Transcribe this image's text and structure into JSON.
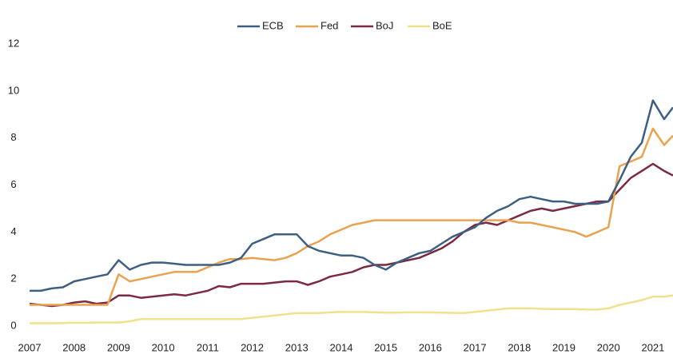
{
  "chart_data": {
    "type": "line",
    "x": [
      2007,
      2007.25,
      2007.5,
      2007.75,
      2008,
      2008.25,
      2008.5,
      2008.75,
      2009,
      2009.25,
      2009.5,
      2009.75,
      2010,
      2010.25,
      2010.5,
      2010.75,
      2011,
      2011.25,
      2011.5,
      2011.75,
      2012,
      2012.25,
      2012.5,
      2012.75,
      2013,
      2013.25,
      2013.5,
      2013.75,
      2014,
      2014.25,
      2014.5,
      2014.75,
      2015,
      2015.25,
      2015.5,
      2015.75,
      2016,
      2016.25,
      2016.5,
      2016.75,
      2017,
      2017.25,
      2017.5,
      2017.75,
      2018,
      2018.25,
      2018.5,
      2018.75,
      2019,
      2019.25,
      2019.5,
      2019.75,
      2020,
      2020.25,
      2020.5,
      2020.75,
      2021,
      2021.25,
      2021.45
    ],
    "series": [
      {
        "name": "ECB",
        "color": "#3d5f82",
        "values": [
          1.5,
          1.5,
          1.6,
          1.65,
          1.9,
          2.0,
          2.1,
          2.2,
          2.8,
          2.4,
          2.6,
          2.7,
          2.7,
          2.65,
          2.6,
          2.6,
          2.6,
          2.6,
          2.7,
          2.9,
          3.5,
          3.7,
          3.9,
          3.9,
          3.9,
          3.4,
          3.2,
          3.1,
          3.0,
          3.0,
          2.9,
          2.6,
          2.4,
          2.7,
          2.9,
          3.1,
          3.2,
          3.5,
          3.8,
          4.0,
          4.2,
          4.6,
          4.9,
          5.1,
          5.4,
          5.5,
          5.4,
          5.3,
          5.3,
          5.2,
          5.2,
          5.2,
          5.3,
          6.2,
          7.2,
          7.8,
          9.6,
          8.8,
          9.3
        ]
      },
      {
        "name": "Fed",
        "color": "#e9a250",
        "values": [
          0.9,
          0.9,
          0.9,
          0.9,
          0.9,
          0.9,
          0.9,
          0.9,
          2.2,
          1.9,
          2.0,
          2.1,
          2.2,
          2.3,
          2.3,
          2.3,
          2.5,
          2.7,
          2.85,
          2.85,
          2.9,
          2.85,
          2.8,
          2.9,
          3.1,
          3.4,
          3.6,
          3.9,
          4.1,
          4.3,
          4.4,
          4.5,
          4.5,
          4.5,
          4.5,
          4.5,
          4.5,
          4.5,
          4.5,
          4.5,
          4.5,
          4.5,
          4.5,
          4.5,
          4.4,
          4.4,
          4.3,
          4.2,
          4.1,
          4.0,
          3.8,
          4.0,
          4.2,
          6.8,
          7.0,
          7.2,
          8.4,
          7.7,
          8.1
        ]
      },
      {
        "name": "BoJ",
        "color": "#7b2a42",
        "values": [
          0.95,
          0.9,
          0.85,
          0.9,
          1.0,
          1.05,
          0.95,
          1.0,
          1.3,
          1.3,
          1.2,
          1.25,
          1.3,
          1.35,
          1.3,
          1.4,
          1.5,
          1.7,
          1.65,
          1.8,
          1.8,
          1.8,
          1.85,
          1.9,
          1.9,
          1.75,
          1.9,
          2.1,
          2.2,
          2.3,
          2.5,
          2.6,
          2.6,
          2.7,
          2.8,
          2.9,
          3.1,
          3.3,
          3.6,
          4.0,
          4.3,
          4.4,
          4.3,
          4.5,
          4.7,
          4.9,
          5.0,
          4.9,
          5.0,
          5.1,
          5.2,
          5.3,
          5.3,
          5.8,
          6.3,
          6.6,
          6.9,
          6.6,
          6.4
        ]
      },
      {
        "name": "BoE",
        "color": "#f0e28c",
        "values": [
          0.12,
          0.12,
          0.12,
          0.13,
          0.14,
          0.14,
          0.15,
          0.15,
          0.15,
          0.2,
          0.3,
          0.3,
          0.3,
          0.3,
          0.3,
          0.3,
          0.3,
          0.3,
          0.3,
          0.3,
          0.35,
          0.4,
          0.45,
          0.5,
          0.55,
          0.55,
          0.55,
          0.58,
          0.6,
          0.6,
          0.6,
          0.58,
          0.57,
          0.57,
          0.58,
          0.58,
          0.58,
          0.57,
          0.56,
          0.55,
          0.6,
          0.65,
          0.7,
          0.75,
          0.75,
          0.75,
          0.73,
          0.72,
          0.72,
          0.72,
          0.7,
          0.7,
          0.75,
          0.9,
          1.0,
          1.1,
          1.25,
          1.25,
          1.3
        ]
      }
    ],
    "xlim": [
      2007,
      2021.45
    ],
    "xticks": [
      2007,
      2008,
      2009,
      2010,
      2011,
      2012,
      2013,
      2014,
      2015,
      2016,
      2017,
      2018,
      2019,
      2020,
      2021
    ],
    "ylim": [
      0,
      12
    ],
    "yticks": [
      0,
      2,
      4,
      6,
      8,
      10,
      12
    ],
    "legend": "top"
  }
}
